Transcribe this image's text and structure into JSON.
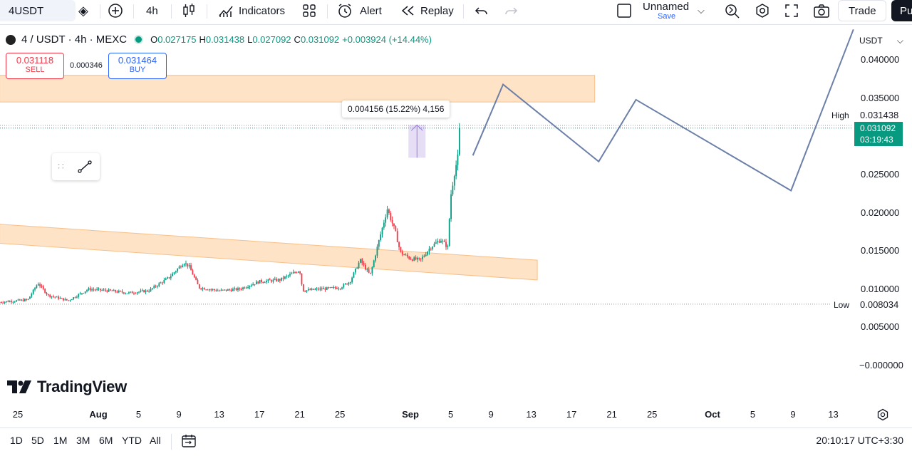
{
  "toolbar": {
    "symbol": "4USDT",
    "interval": "4h",
    "indicators_label": "Indicators",
    "alert_label": "Alert",
    "replay_label": "Replay",
    "layout_name": "Unnamed",
    "save_label": "Save",
    "trade_label": "Trade",
    "publish_label": "Pu"
  },
  "legend": {
    "symbol_line": "4 / USDT · 4h · MEXC",
    "o_label": "O",
    "o_value": "0.027175",
    "h_label": "H",
    "h_value": "0.031438",
    "l_label": "L",
    "l_value": "0.027092",
    "c_label": "C",
    "c_value": "0.031092",
    "change": "+0.003924 (+14.44%)"
  },
  "order": {
    "sell_price": "0.031118",
    "sell_label": "SELL",
    "spread": "0.000346",
    "buy_price": "0.031464",
    "buy_label": "BUY"
  },
  "measure": {
    "text": "0.004156 (15.22%) 4,156"
  },
  "price_axis": {
    "currency": "USDT",
    "high_label": "High",
    "high_value": "0.031438",
    "low_label": "Low",
    "low_value": "0.008034",
    "current_value": "0.031092",
    "countdown": "03:19:43"
  },
  "branding": {
    "logo_text": "TradingView"
  },
  "range_buttons": [
    "1D",
    "5D",
    "1M",
    "3M",
    "6M",
    "YTD",
    "All"
  ],
  "clock": "20:10:17 UTC+3:30",
  "colors": {
    "up": "#089981",
    "down": "#f23645",
    "zone": "#ffcc99",
    "path": "#6b7fa8",
    "buy": "#2962ff"
  },
  "chart_data": {
    "type": "candlestick",
    "title": "",
    "xlabel": "",
    "ylabel": "",
    "ylim": [
      0.0,
      0.043
    ],
    "price_ticks": [
      {
        "value": 0.04,
        "label": "0.040000"
      },
      {
        "value": 0.035,
        "label": "0.035000"
      },
      {
        "value": 0.025,
        "label": "0.025000"
      },
      {
        "value": 0.02,
        "label": "0.020000"
      },
      {
        "value": 0.015,
        "label": "0.015000"
      },
      {
        "value": 0.01,
        "label": "0.010000"
      },
      {
        "value": 0.005,
        "label": "0.005000"
      },
      {
        "value": 0.0,
        "label": "−0.000000"
      }
    ],
    "time_ticks": [
      {
        "day": 25,
        "label": "25"
      },
      {
        "day": 33,
        "label": "Aug"
      },
      {
        "day": 37,
        "label": "5"
      },
      {
        "day": 41,
        "label": "9"
      },
      {
        "day": 45,
        "label": "13"
      },
      {
        "day": 49,
        "label": "17"
      },
      {
        "day": 53,
        "label": "21"
      },
      {
        "day": 57,
        "label": "25"
      },
      {
        "day": 64,
        "label": "Sep"
      },
      {
        "day": 68,
        "label": "5"
      },
      {
        "day": 72,
        "label": "9"
      },
      {
        "day": 76,
        "label": "13"
      },
      {
        "day": 80,
        "label": "17"
      },
      {
        "day": 84,
        "label": "21"
      },
      {
        "day": 88,
        "label": "25"
      },
      {
        "day": 94,
        "label": "Oct"
      },
      {
        "day": 98,
        "label": "5"
      },
      {
        "day": 102,
        "label": "9"
      },
      {
        "day": 106,
        "label": "13"
      }
    ],
    "price_trend": [
      {
        "day": 23.2,
        "price": 0.0083
      },
      {
        "day": 26,
        "price": 0.0086
      },
      {
        "day": 27,
        "price": 0.0108
      },
      {
        "day": 28,
        "price": 0.0092
      },
      {
        "day": 30,
        "price": 0.0085
      },
      {
        "day": 32,
        "price": 0.01
      },
      {
        "day": 34,
        "price": 0.0098
      },
      {
        "day": 36,
        "price": 0.0095
      },
      {
        "day": 38,
        "price": 0.0098
      },
      {
        "day": 40,
        "price": 0.0115
      },
      {
        "day": 41.5,
        "price": 0.0135
      },
      {
        "day": 42,
        "price": 0.013
      },
      {
        "day": 43,
        "price": 0.0102
      },
      {
        "day": 45,
        "price": 0.0098
      },
      {
        "day": 47,
        "price": 0.01
      },
      {
        "day": 49,
        "price": 0.011
      },
      {
        "day": 51,
        "price": 0.0112
      },
      {
        "day": 53,
        "price": 0.0125
      },
      {
        "day": 53.3,
        "price": 0.0098
      },
      {
        "day": 55,
        "price": 0.01
      },
      {
        "day": 57,
        "price": 0.0102
      },
      {
        "day": 58,
        "price": 0.011
      },
      {
        "day": 59,
        "price": 0.0138
      },
      {
        "day": 60,
        "price": 0.0118
      },
      {
        "day": 61,
        "price": 0.017
      },
      {
        "day": 61.7,
        "price": 0.0205
      },
      {
        "day": 62.5,
        "price": 0.0175
      },
      {
        "day": 63,
        "price": 0.0148
      },
      {
        "day": 64,
        "price": 0.014
      },
      {
        "day": 65,
        "price": 0.0138
      },
      {
        "day": 66,
        "price": 0.0155
      },
      {
        "day": 67,
        "price": 0.0165
      },
      {
        "day": 67.7,
        "price": 0.0155
      },
      {
        "day": 68,
        "price": 0.0222
      },
      {
        "day": 68.4,
        "price": 0.0255
      },
      {
        "day": 68.7,
        "price": 0.0272
      },
      {
        "day": 69,
        "price": 0.0311
      }
    ],
    "candles_days": [
      23.2,
      69
    ],
    "projection_path": [
      {
        "day": 70.2,
        "price": 0.0275
      },
      {
        "day": 73.2,
        "price": 0.0368
      },
      {
        "day": 82.7,
        "price": 0.0267
      },
      {
        "day": 86.4,
        "price": 0.0348
      },
      {
        "day": 101.8,
        "price": 0.0229
      },
      {
        "day": 108,
        "price": 0.044
      }
    ],
    "zones": [
      {
        "type": "rectangle",
        "day_start": 23.2,
        "day_end": 82.3,
        "price_low": 0.0345,
        "price_high": 0.038
      },
      {
        "type": "parallel_channel",
        "day_start": 23.2,
        "day_end": 76.6,
        "start_low": 0.016,
        "start_high": 0.0185,
        "end_low": 0.0112,
        "end_high": 0.0138
      }
    ],
    "high_line": 0.031438,
    "low_line": 0.008034,
    "current_line": 0.031092,
    "measure_box": {
      "day_start": 63.8,
      "day_end": 65.5,
      "price_low": 0.0272,
      "price_high": 0.0315
    }
  }
}
